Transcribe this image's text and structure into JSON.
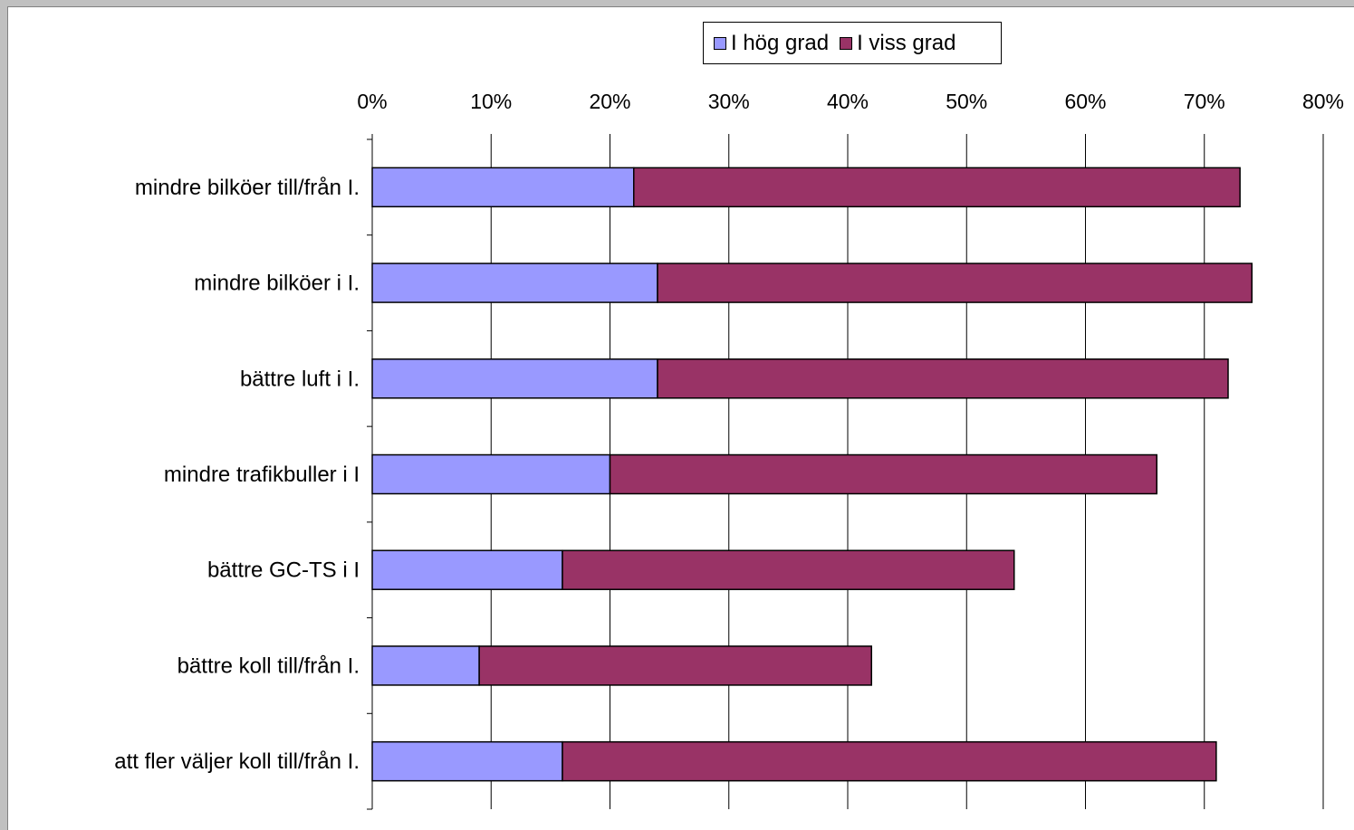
{
  "colors": {
    "series_high": "#9999ff",
    "series_some": "#993366",
    "gridline": "#000000",
    "background": "#ffffff"
  },
  "legend": {
    "items": [
      "I hög grad",
      "I viss grad"
    ],
    "placement": "top"
  },
  "chart_data": {
    "type": "bar",
    "orientation": "horizontal",
    "stacked": true,
    "categories": [
      "mindre bilköer till/från I.",
      "mindre bilköer i I.",
      "bättre luft i I.",
      "mindre trafikbuller i I",
      "bättre GC-TS i I",
      "bättre koll till/från I.",
      "att fler väljer koll till/från I."
    ],
    "series": [
      {
        "name": "I hög grad",
        "color": "#9999ff",
        "values": [
          22,
          24,
          24,
          20,
          16,
          9,
          16
        ]
      },
      {
        "name": "I viss grad",
        "color": "#993366",
        "values": [
          51,
          50,
          48,
          46,
          38,
          33,
          55
        ]
      }
    ],
    "xlim": [
      0,
      80
    ],
    "xticks": [
      "0%",
      "10%",
      "20%",
      "30%",
      "40%",
      "50%",
      "60%",
      "70%",
      "80%"
    ],
    "grid": true,
    "title": "",
    "xlabel": "",
    "ylabel": ""
  }
}
